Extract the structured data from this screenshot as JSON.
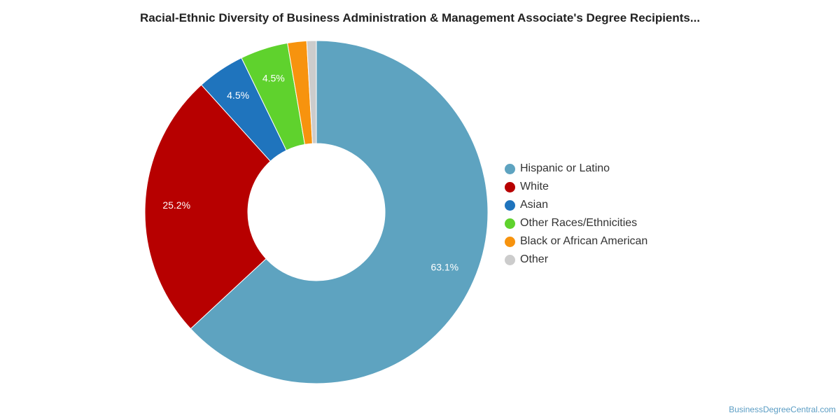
{
  "chart_data": {
    "type": "pie",
    "title": "Racial-Ethnic Diversity of Business Administration & Management Associate's Degree Recipients...",
    "labels": [
      "Hispanic or Latino",
      "White",
      "Asian",
      "Other Races/Ethnicities",
      "Black or African American",
      "Other"
    ],
    "values": [
      63.1,
      25.2,
      4.5,
      4.5,
      1.8,
      0.9
    ],
    "data_labels": [
      "63.1%",
      "25.2%",
      "4.5%",
      "4.5%",
      "",
      ""
    ],
    "colors": [
      "#5ea3c0",
      "#b70000",
      "#1f74bd",
      "#5fd22d",
      "#f7930e",
      "#cccccc"
    ],
    "legend_position": "right",
    "donut": true
  },
  "footer": {
    "source": "BusinessDegreeCentral.com"
  }
}
